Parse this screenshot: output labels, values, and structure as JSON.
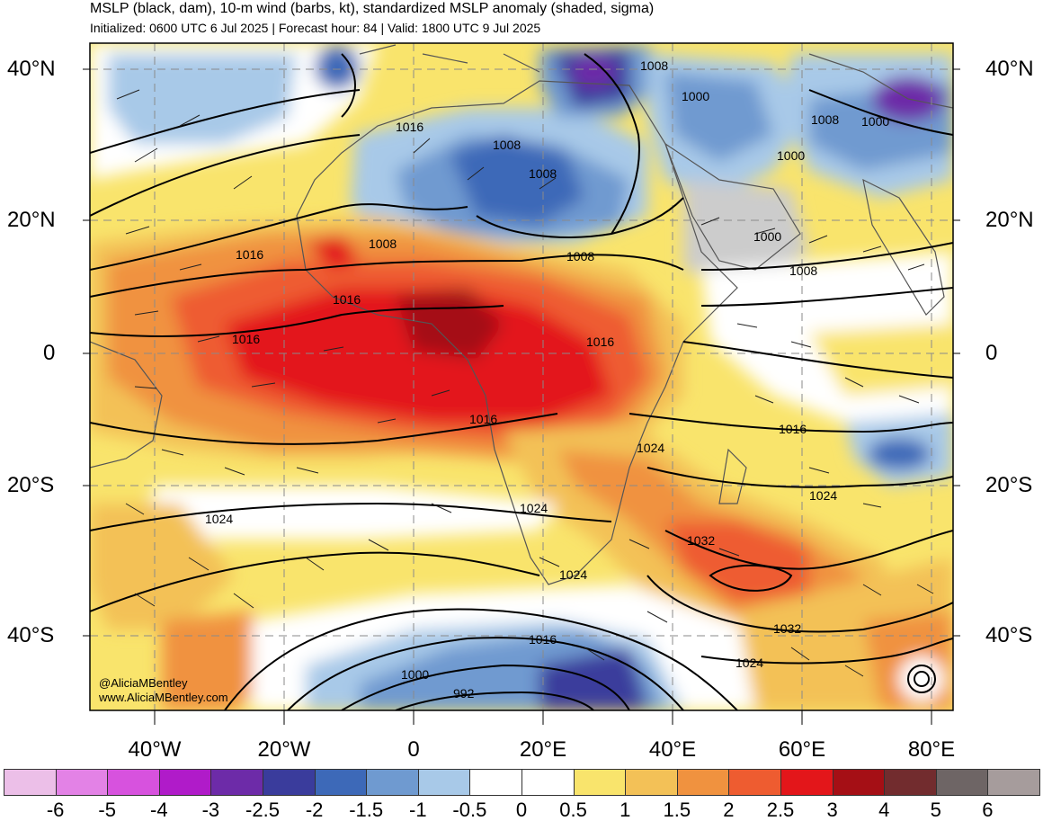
{
  "header": {
    "title": "MSLP (black, dam), 10-m wind (barbs, kt), standardized MSLP anomaly (shaded, sigma)",
    "subtitle": "Initialized: 0600 UTC 6 Jul 2025 | Forecast hour: 84 | Valid: 1800 UTC 9 Jul 2025"
  },
  "map": {
    "left_lat_labels": [
      "40°N",
      "20°N",
      "0",
      "20°S",
      "40°S"
    ],
    "right_lat_labels": [
      "40°N",
      "20°N",
      "0",
      "20°S",
      "40°S"
    ],
    "lon_labels": [
      "40°W",
      "20°W",
      "0",
      "20°E",
      "40°E",
      "60°E",
      "80°E"
    ],
    "contour_labels": [
      "1008",
      "1000",
      "1008",
      "1000",
      "1016",
      "1008",
      "1008",
      "1000",
      "1016",
      "1008",
      "1008",
      "1000",
      "1008",
      "1016",
      "1016",
      "1016",
      "1016",
      "1024",
      "1016",
      "1024",
      "1024",
      "1024",
      "1024",
      "1032",
      "1032",
      "1024",
      "1016",
      "1000",
      "992"
    ],
    "credit_handle": "@AliciaMBentley",
    "credit_site": "www.AliciaMBentley.com"
  },
  "colorbar": {
    "ticks": [
      "-6",
      "-5",
      "-4",
      "-3",
      "-2.5",
      "-2",
      "-1.5",
      "-1",
      "-0.5",
      "0",
      "0.5",
      "1",
      "1.5",
      "2",
      "2.5",
      "3",
      "4",
      "5",
      "6"
    ],
    "colors": [
      "#ecbfe8",
      "#e382e6",
      "#d752de",
      "#b01bc9",
      "#6d2ba8",
      "#3a3c9c",
      "#3d69b8",
      "#6f9ad0",
      "#a8c9e8",
      "#ffffff",
      "#ffffff",
      "#f9e46c",
      "#f3c157",
      "#f0923f",
      "#ee5c30",
      "#e3161a",
      "#a50f15",
      "#722c2e",
      "#6e6565",
      "#a69c9c"
    ]
  }
}
